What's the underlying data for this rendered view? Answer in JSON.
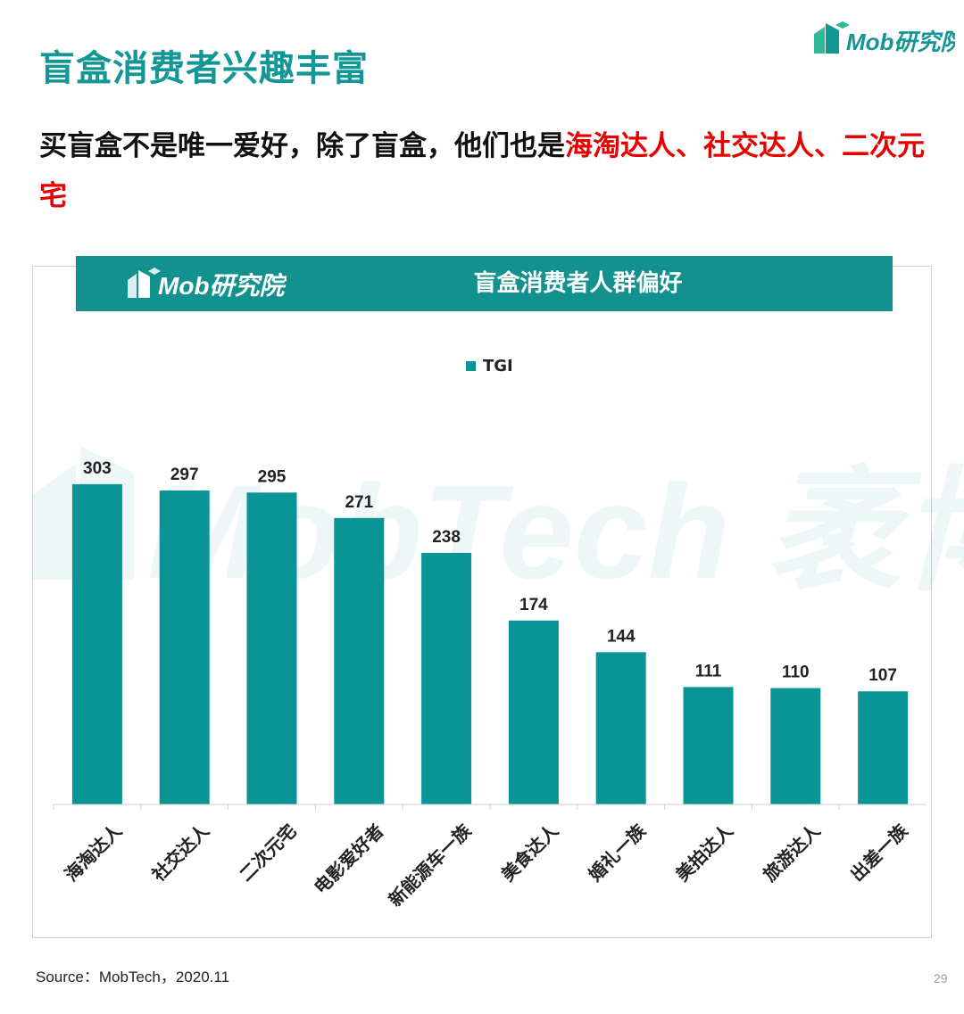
{
  "page": {
    "title": "盲盒消费者兴趣丰富",
    "brand": "Mob研究院",
    "subtitle_plain": "买盲盒不是唯一爱好，除了盲盒，他们也是",
    "subtitle_highlight": "海淘达人、社交达人、二次元宅",
    "source": "Source：MobTech，2020.11",
    "page_number": "29",
    "watermark": "MobTech 袤博"
  },
  "colors": {
    "accent": "#129696",
    "bar": "#0a9496",
    "highlight": "#e60000"
  },
  "chart_data": {
    "type": "bar",
    "title": "盲盒消费者人群偏好",
    "legend_position": "top-center",
    "categories": [
      "海淘达人",
      "社交达人",
      "二次元宅",
      "电影爱好者",
      "新能源车一族",
      "美食达人",
      "婚礼一族",
      "美拍达人",
      "旅游达人",
      "出差一族"
    ],
    "series": [
      {
        "name": "TGI",
        "values": [
          303,
          297,
          295,
          271,
          238,
          174,
          144,
          111,
          110,
          107
        ]
      }
    ],
    "ylim": [
      0,
      340
    ],
    "grid": false,
    "data_labels": true
  }
}
